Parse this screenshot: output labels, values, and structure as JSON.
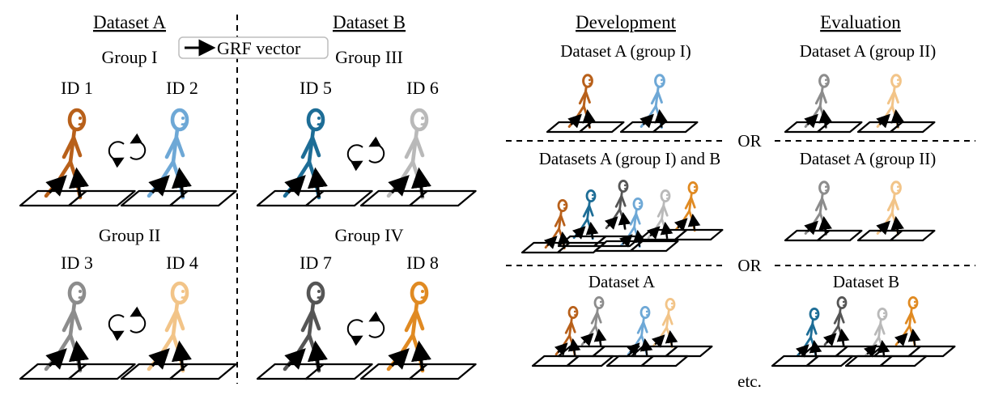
{
  "legend": {
    "label": "GRF vector"
  },
  "left_panel": {
    "dataset_a_title": "Dataset A",
    "dataset_b_title": "Dataset B",
    "groups": [
      {
        "name": "Group I",
        "ids": [
          "ID 1",
          "ID 2"
        ],
        "colors": [
          "#b8601a",
          "#6ea8d6"
        ]
      },
      {
        "name": "Group III",
        "ids": [
          "ID 5",
          "ID 6"
        ],
        "colors": [
          "#1d6d96",
          "#b9b9b9"
        ]
      },
      {
        "name": "Group II",
        "ids": [
          "ID 3",
          "ID 4"
        ],
        "colors": [
          "#8c8c8c",
          "#f2c488"
        ]
      },
      {
        "name": "Group IV",
        "ids": [
          "ID 7",
          "ID 8"
        ],
        "colors": [
          "#555555",
          "#e08a22"
        ]
      }
    ]
  },
  "right_panel": {
    "development_title": "Development",
    "evaluation_title": "Evaluation",
    "rows": [
      {
        "development": "Dataset A (group I)",
        "evaluation": "Dataset A (group II)"
      },
      {
        "development": "Datasets A (group I) and B",
        "evaluation": "Dataset A (group II)"
      },
      {
        "development": "Dataset A",
        "evaluation": "Dataset B"
      }
    ],
    "separators": [
      "OR",
      "OR"
    ],
    "footer": "etc."
  },
  "colors": {
    "id1": "#b8601a",
    "id2": "#6ea8d6",
    "id3": "#8c8c8c",
    "id4": "#f2c488",
    "id5": "#1d6d96",
    "id6": "#b9b9b9",
    "id7": "#555555",
    "id8": "#e08a22"
  }
}
